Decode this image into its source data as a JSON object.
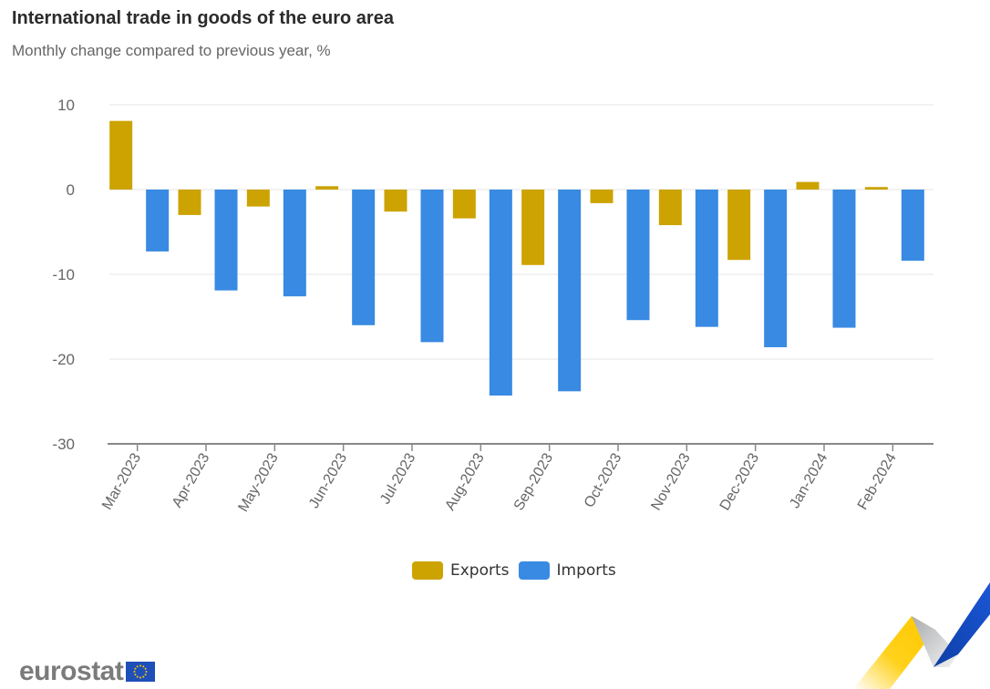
{
  "header": {
    "title": "International trade in goods of the euro area",
    "subtitle": "Monthly change compared to previous year, %"
  },
  "colors": {
    "exports": "#cca300",
    "imports": "#388ae2",
    "grid": "#e6e6e6",
    "axis": "#888888",
    "tick_text": "#666666"
  },
  "legend": {
    "items": [
      {
        "label": "Exports",
        "color": "#cca300"
      },
      {
        "label": "Imports",
        "color": "#388ae2"
      }
    ]
  },
  "branding": {
    "logo_text": "eurostat",
    "logo_icon": "eu-flag-icon",
    "decoration": "ribbon-chart-icon"
  },
  "chart_data": {
    "type": "bar",
    "title": "International trade in goods of the euro area",
    "subtitle": "Monthly change compared to previous year, %",
    "xlabel": "",
    "ylabel": "",
    "ylim": [
      -30,
      10
    ],
    "yticks": [
      10,
      0,
      -10,
      -20,
      -30
    ],
    "grid": true,
    "legend_position": "bottom-center",
    "categories": [
      "Mar-2023",
      "Apr-2023",
      "May-2023",
      "Jun-2023",
      "Jul-2023",
      "Aug-2023",
      "Sep-2023",
      "Oct-2023",
      "Nov-2023",
      "Dec-2023",
      "Jan-2024",
      "Feb-2024"
    ],
    "series": [
      {
        "name": "Exports",
        "values": [
          8.1,
          -3.0,
          -2.0,
          0.4,
          -2.6,
          -3.4,
          -8.9,
          -1.6,
          -4.2,
          -8.3,
          0.9,
          0.3
        ]
      },
      {
        "name": "Imports",
        "values": [
          -7.3,
          -11.9,
          -12.6,
          -16.0,
          -18.0,
          -24.3,
          -23.8,
          -15.4,
          -16.2,
          -18.6,
          -16.3,
          -8.4
        ]
      }
    ]
  }
}
